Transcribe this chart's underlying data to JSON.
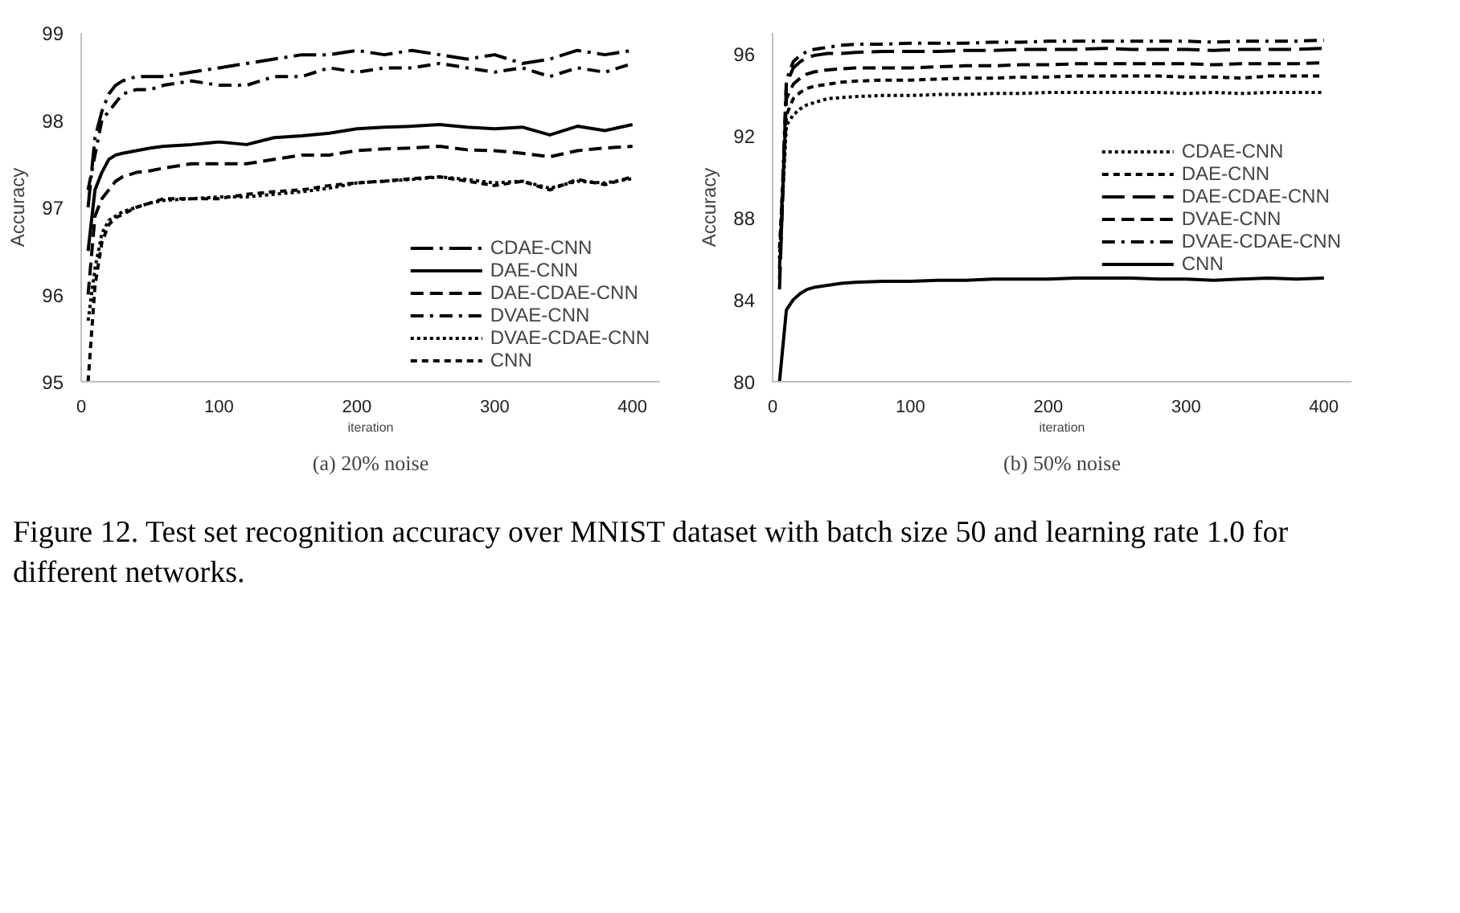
{
  "chart_data": [
    {
      "type": "line",
      "subtitle": "(a) 20% noise",
      "xlabel": "iteration",
      "ylabel": "Accuracy",
      "xlim": [
        0,
        420
      ],
      "xticks": [
        0,
        100,
        200,
        300,
        400
      ],
      "ylim": [
        95,
        99
      ],
      "yticks": [
        95,
        96,
        97,
        98,
        99
      ],
      "grid": false,
      "legend": "bottom right",
      "marker": "none",
      "x": [
        5,
        10,
        15,
        20,
        25,
        30,
        40,
        50,
        60,
        80,
        100,
        120,
        140,
        160,
        180,
        200,
        220,
        240,
        260,
        280,
        300,
        320,
        340,
        360,
        380,
        400
      ],
      "annotations": [
        "Figure 12. Test set recognition accuracy over MNIST dataset with batch size 50 and learning rate 1.0 for different networks."
      ],
      "series": [
        {
          "name": "CDAE-CNN",
          "color": "#000000",
          "line_style": "longdashdot",
          "values": [
            97.0,
            97.8,
            98.1,
            98.3,
            98.4,
            98.45,
            98.5,
            98.5,
            98.5,
            98.55,
            98.6,
            98.65,
            98.7,
            98.75,
            98.75,
            98.8,
            98.75,
            98.8,
            98.75,
            98.7,
            98.75,
            98.65,
            98.7,
            98.8,
            98.75,
            98.8
          ]
        },
        {
          "name": "DAE-CNN",
          "color": "#000000",
          "line_style": "solid",
          "values": [
            96.5,
            97.2,
            97.4,
            97.55,
            97.6,
            97.62,
            97.65,
            97.68,
            97.7,
            97.72,
            97.75,
            97.72,
            97.8,
            97.82,
            97.85,
            97.9,
            97.92,
            97.93,
            97.95,
            97.92,
            97.9,
            97.92,
            97.83,
            97.93,
            97.88,
            97.95
          ]
        },
        {
          "name": "DAE-CDAE-CNN",
          "color": "#000000",
          "line_style": "dashed",
          "values": [
            96.0,
            96.9,
            97.1,
            97.2,
            97.3,
            97.35,
            97.4,
            97.42,
            97.45,
            97.5,
            97.5,
            97.5,
            97.55,
            97.6,
            97.6,
            97.65,
            97.67,
            97.68,
            97.7,
            97.66,
            97.65,
            97.62,
            97.58,
            97.65,
            97.68,
            97.7
          ]
        },
        {
          "name": "DVAE-CNN",
          "color": "#000000",
          "line_style": "dashdot",
          "values": [
            97.2,
            97.6,
            98.0,
            98.1,
            98.2,
            98.3,
            98.35,
            98.35,
            98.4,
            98.45,
            98.4,
            98.4,
            98.5,
            98.5,
            98.6,
            98.55,
            98.6,
            98.6,
            98.65,
            98.6,
            98.55,
            98.6,
            98.5,
            98.6,
            98.55,
            98.65
          ]
        },
        {
          "name": "DVAE-CDAE-CNN",
          "color": "#000000",
          "line_style": "dotted",
          "values": [
            95.7,
            96.3,
            96.7,
            96.85,
            96.9,
            96.95,
            97.0,
            97.05,
            97.08,
            97.1,
            97.12,
            97.12,
            97.15,
            97.18,
            97.22,
            97.28,
            97.3,
            97.32,
            97.35,
            97.32,
            97.28,
            97.3,
            97.22,
            97.3,
            97.28,
            97.33
          ]
        },
        {
          "name": "CNN",
          "color": "#000000",
          "line_style": "shortdash",
          "values": [
            95.0,
            96.1,
            96.6,
            96.8,
            96.88,
            96.92,
            97.0,
            97.05,
            97.1,
            97.1,
            97.1,
            97.15,
            97.18,
            97.2,
            97.25,
            97.28,
            97.3,
            97.33,
            97.35,
            97.3,
            97.25,
            97.3,
            97.2,
            97.32,
            97.26,
            97.35
          ]
        }
      ]
    },
    {
      "type": "line",
      "subtitle": "(b) 50% noise",
      "xlabel": "iteration",
      "ylabel": "Accuracy",
      "xlim": [
        0,
        420
      ],
      "xticks": [
        0,
        100,
        200,
        300,
        400
      ],
      "ylim": [
        80,
        97
      ],
      "yticks": [
        80,
        84,
        88,
        92,
        96
      ],
      "grid": false,
      "legend": "right",
      "marker": "none",
      "x": [
        5,
        10,
        15,
        20,
        25,
        30,
        40,
        50,
        60,
        80,
        100,
        120,
        140,
        160,
        180,
        200,
        220,
        240,
        260,
        280,
        300,
        320,
        340,
        360,
        380,
        400
      ],
      "series": [
        {
          "name": "CDAE-CNN",
          "color": "#000000",
          "line_style": "dotted",
          "values": [
            86.0,
            92.5,
            93.0,
            93.3,
            93.5,
            93.6,
            93.8,
            93.85,
            93.9,
            93.95,
            93.95,
            94.0,
            94.0,
            94.05,
            94.05,
            94.1,
            94.1,
            94.1,
            94.1,
            94.1,
            94.05,
            94.1,
            94.05,
            94.1,
            94.1,
            94.1
          ]
        },
        {
          "name": "DAE-CNN",
          "color": "#000000",
          "line_style": "shortdash",
          "values": [
            86.5,
            93.0,
            93.8,
            94.1,
            94.3,
            94.4,
            94.5,
            94.6,
            94.65,
            94.7,
            94.7,
            94.75,
            94.8,
            94.8,
            94.85,
            94.85,
            94.9,
            94.9,
            94.9,
            94.9,
            94.85,
            94.85,
            94.8,
            94.9,
            94.9,
            94.9
          ]
        },
        {
          "name": "DAE-CDAE-CNN",
          "color": "#000000",
          "line_style": "longdash",
          "values": [
            84.5,
            94.5,
            95.3,
            95.6,
            95.8,
            95.9,
            96.0,
            96.0,
            96.05,
            96.1,
            96.1,
            96.1,
            96.15,
            96.15,
            96.2,
            96.2,
            96.2,
            96.25,
            96.2,
            96.2,
            96.2,
            96.15,
            96.2,
            96.2,
            96.2,
            96.25
          ]
        },
        {
          "name": "DVAE-CNN",
          "color": "#000000",
          "line_style": "dashed",
          "values": [
            85.0,
            93.8,
            94.5,
            94.8,
            95.0,
            95.1,
            95.2,
            95.25,
            95.3,
            95.3,
            95.3,
            95.35,
            95.4,
            95.4,
            95.45,
            95.45,
            95.5,
            95.5,
            95.5,
            95.5,
            95.5,
            95.45,
            95.5,
            95.5,
            95.5,
            95.55
          ]
        },
        {
          "name": "DVAE-CDAE-CNN",
          "color": "#000000",
          "line_style": "dashdot",
          "values": [
            85.5,
            94.7,
            95.6,
            95.9,
            96.1,
            96.2,
            96.3,
            96.4,
            96.45,
            96.45,
            96.5,
            96.5,
            96.5,
            96.55,
            96.55,
            96.6,
            96.6,
            96.6,
            96.6,
            96.6,
            96.6,
            96.55,
            96.6,
            96.6,
            96.6,
            96.65
          ]
        },
        {
          "name": "CNN",
          "color": "#000000",
          "line_style": "solid",
          "values": [
            80.0,
            83.5,
            84.0,
            84.3,
            84.5,
            84.6,
            84.7,
            84.8,
            84.85,
            84.9,
            84.9,
            84.95,
            84.95,
            85.0,
            85.0,
            85.0,
            85.05,
            85.05,
            85.05,
            85.0,
            85.0,
            84.95,
            85.0,
            85.05,
            85.0,
            85.05
          ]
        }
      ]
    }
  ]
}
